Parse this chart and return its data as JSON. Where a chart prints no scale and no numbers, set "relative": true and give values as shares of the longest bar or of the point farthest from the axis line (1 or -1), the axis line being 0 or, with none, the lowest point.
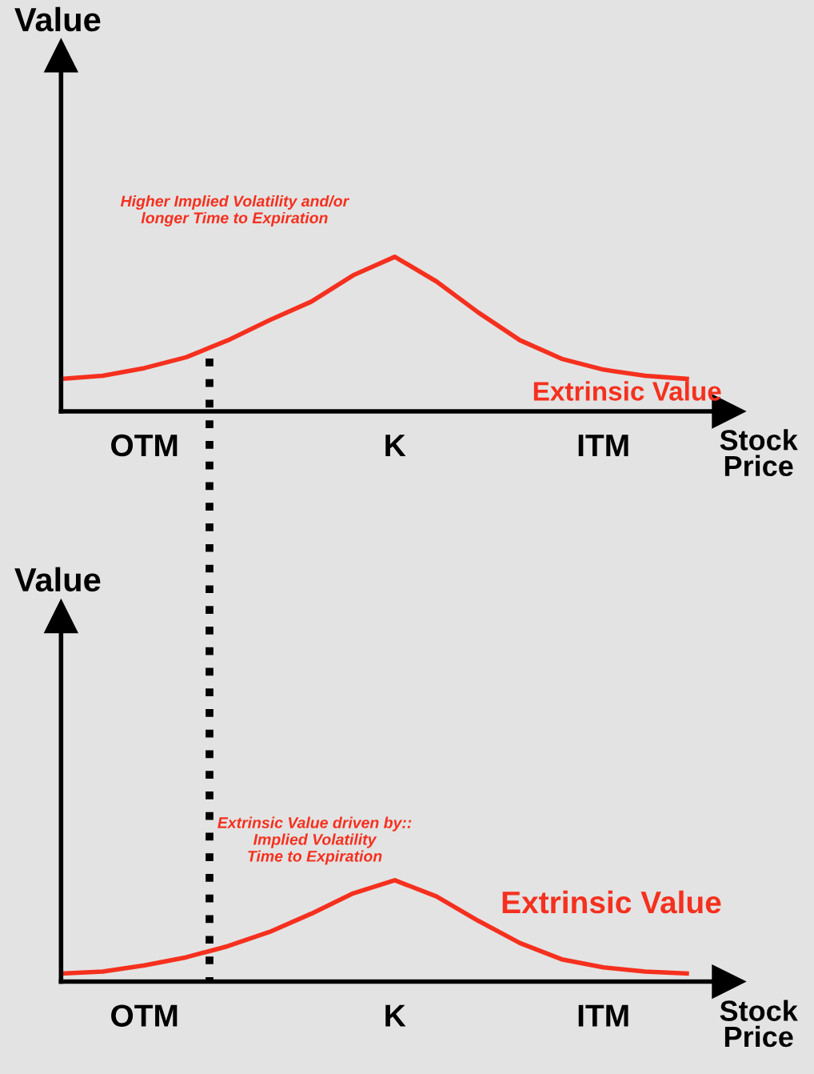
{
  "chart_data": [
    {
      "type": "line",
      "relative": true,
      "xlabel": "Stock\nPrice",
      "ylabel": "Value",
      "categories": [
        null,
        null,
        "OTM",
        null,
        null,
        null,
        null,
        null,
        "K",
        null,
        null,
        null,
        null,
        "ITM",
        null,
        null
      ],
      "grid": false,
      "marker": "none",
      "line_style": "solid",
      "series": [
        {
          "name": "Extrinsic Value",
          "color": "#f5301e",
          "values": [
            0.21,
            0.23,
            0.28,
            0.35,
            0.46,
            0.59,
            0.71,
            0.88,
            1,
            0.84,
            0.64,
            0.46,
            0.34,
            0.27,
            0.23,
            0.21
          ]
        }
      ],
      "annotations": [
        "Higher Implied Volatility and/or\nlonger Time to Expiration"
      ]
    },
    {
      "type": "line",
      "relative": true,
      "xlabel": "Stock\nPrice",
      "ylabel": "Value",
      "categories": [
        null,
        null,
        "OTM",
        null,
        null,
        null,
        null,
        null,
        "K",
        null,
        null,
        null,
        null,
        "ITM",
        null,
        null
      ],
      "grid": false,
      "marker": "none",
      "line_style": "solid",
      "series": [
        {
          "name": "Extrinsic Value",
          "color": "#f5301e",
          "values": [
            0.08,
            0.1,
            0.16,
            0.24,
            0.35,
            0.49,
            0.67,
            0.87,
            1,
            0.84,
            0.6,
            0.38,
            0.22,
            0.14,
            0.1,
            0.08
          ]
        }
      ],
      "annotations": [
        "Extrinsic Value driven by::\nImplied Volatility\nTime to Expiration"
      ]
    }
  ]
}
